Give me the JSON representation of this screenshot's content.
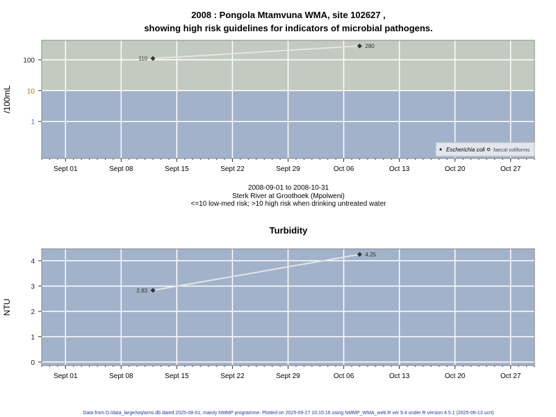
{
  "chart_data": [
    {
      "type": "line",
      "title": "2008 : Pongola Mtamvuna WMA, site 102627 ,",
      "subtitle": "showing high risk guidelines for indicators of microbial pathogens.",
      "ylabel": "/100mL",
      "yscale": "log",
      "ylim": [
        0.063,
        427
      ],
      "xlim": [
        "2008-08-29",
        "2008-10-30"
      ],
      "yticks": [
        "100",
        "10",
        "1"
      ],
      "ytick_values": [
        100,
        10,
        1
      ],
      "ytick_colors": [
        "#222222",
        "#c07000",
        "#3a7ad0"
      ],
      "xtick_dates": [
        "2008-09-01",
        "2008-09-08",
        "2008-09-15",
        "2008-09-22",
        "2008-09-29",
        "2008-10-06",
        "2008-10-13",
        "2008-10-20",
        "2008-10-27"
      ],
      "xticks": [
        "Sept 01",
        "Sept 08",
        "Sept 15",
        "Sept 22",
        "Sept 29",
        "Oct 06",
        "Oct 13",
        "Oct 20",
        "Oct 27"
      ],
      "grid": true,
      "bands": [
        {
          "from": 10,
          "to": "top",
          "color": "#c3cbc0"
        },
        {
          "from": "bottom",
          "to": 10,
          "color": "#a2b2cb"
        }
      ],
      "series": [
        {
          "name": "Escherichia coli",
          "x": [
            "2008-09-12",
            "2008-10-08"
          ],
          "y": [
            110,
            280
          ],
          "labels": [
            "110",
            "280"
          ]
        }
      ],
      "legend": {
        "position": "bottom-right",
        "entries": [
          "Escherichia coli",
          "faecal coliforms"
        ]
      },
      "annotations": [
        "2008-09-01 to 2008-10-31",
        "Sterk River at Groothoek (Mpolweni)",
        "<=10 low-med risk; >10 high risk when drinking untreated water"
      ]
    },
    {
      "type": "line",
      "title": "Turbidity",
      "ylabel": "NTU",
      "ylim": [
        -0.14,
        4.47
      ],
      "xlim": [
        "2008-08-29",
        "2008-10-30"
      ],
      "yticks": [
        "4",
        "3",
        "2",
        "1",
        "0"
      ],
      "ytick_values": [
        4,
        3,
        2,
        1,
        0
      ],
      "xtick_dates": [
        "2008-09-01",
        "2008-09-08",
        "2008-09-15",
        "2008-09-22",
        "2008-09-29",
        "2008-10-06",
        "2008-10-13",
        "2008-10-20",
        "2008-10-27"
      ],
      "xticks": [
        "Sept 01",
        "Sept 08",
        "Sept 15",
        "Sept 22",
        "Sept 29",
        "Oct 06",
        "Oct 13",
        "Oct 20",
        "Oct 27"
      ],
      "grid": true,
      "background": "#a2b2cb",
      "series": [
        {
          "x": [
            "2008-09-12",
            "2008-10-08"
          ],
          "y": [
            2.83,
            4.25
          ],
          "labels": [
            "2.83",
            "4.25"
          ]
        }
      ]
    }
  ],
  "footer": "Data from D:/data_large/wq/wms.db dated 2025-08-01, mainly NMMP programme. Plotted on 2025-09-27 10:15:16 using NMMP_WMA_web.R ver 9.4 under R version 4.5.1 (2025-06-13 ucrt)"
}
